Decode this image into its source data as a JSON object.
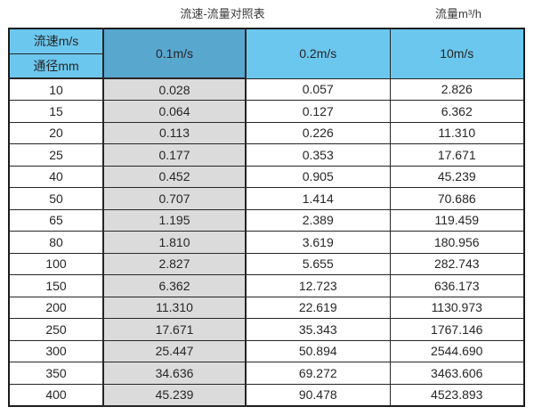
{
  "page": {
    "title_main": "流速-流量对照表",
    "title_right": "流量m³/h"
  },
  "colors": {
    "header_blue": "#6cc7ee",
    "header_blue_dark": "#58a7cf",
    "highlight_gray": "#dbdbdb",
    "border": "#262626",
    "text": "#303030"
  },
  "chart_data": {
    "type": "table",
    "title": "流速-流量对照表",
    "right_unit_title": "流量m³/h",
    "corner": {
      "top": "流速m/s",
      "bottom": "通径mm"
    },
    "columns": [
      "0.1m/s",
      "0.2m/s",
      "10m/s"
    ],
    "highlighted_column": "0.1m/s",
    "row_header_unit": "通径mm",
    "rows": [
      {
        "dn": "10",
        "values": [
          "0.028",
          "0.057",
          "2.826"
        ]
      },
      {
        "dn": "15",
        "values": [
          "0.064",
          "0.127",
          "6.362"
        ]
      },
      {
        "dn": "20",
        "values": [
          "0.113",
          "0.226",
          "11.310"
        ]
      },
      {
        "dn": "25",
        "values": [
          "0.177",
          "0.353",
          "17.671"
        ]
      },
      {
        "dn": "40",
        "values": [
          "0.452",
          "0.905",
          "45.239"
        ]
      },
      {
        "dn": "50",
        "values": [
          "0.707",
          "1.414",
          "70.686"
        ]
      },
      {
        "dn": "65",
        "values": [
          "1.195",
          "2.389",
          "119.459"
        ]
      },
      {
        "dn": "80",
        "values": [
          "1.810",
          "3.619",
          "180.956"
        ]
      },
      {
        "dn": "100",
        "values": [
          "2.827",
          "5.655",
          "282.743"
        ]
      },
      {
        "dn": "150",
        "values": [
          "6.362",
          "12.723",
          "636.173"
        ]
      },
      {
        "dn": "200",
        "values": [
          "11.310",
          "22.619",
          "1130.973"
        ]
      },
      {
        "dn": "250",
        "values": [
          "17.671",
          "35.343",
          "1767.146"
        ]
      },
      {
        "dn": "300",
        "values": [
          "25.447",
          "50.894",
          "2544.690"
        ]
      },
      {
        "dn": "350",
        "values": [
          "34.636",
          "69.272",
          "3463.606"
        ]
      },
      {
        "dn": "400",
        "values": [
          "45.239",
          "90.478",
          "4523.893"
        ]
      }
    ]
  }
}
